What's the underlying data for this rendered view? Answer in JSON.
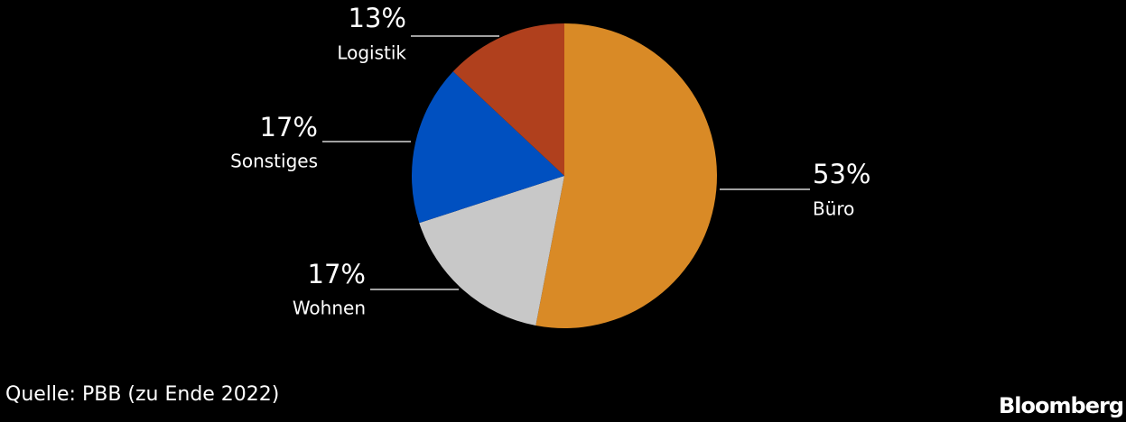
{
  "chart_data": {
    "type": "pie",
    "categories": [
      "Büro",
      "Wohnen",
      "Sonstiges",
      "Logistik"
    ],
    "values": [
      53,
      17,
      17,
      13
    ],
    "value_labels": [
      "53%",
      "17%",
      "17%",
      "13%"
    ],
    "colors": [
      "#d98a26",
      "#c8c8c8",
      "#0050c0",
      "#b0401d"
    ],
    "source": "Quelle: PBB (zu Ende 2022)",
    "logo": "Bloomberg"
  }
}
